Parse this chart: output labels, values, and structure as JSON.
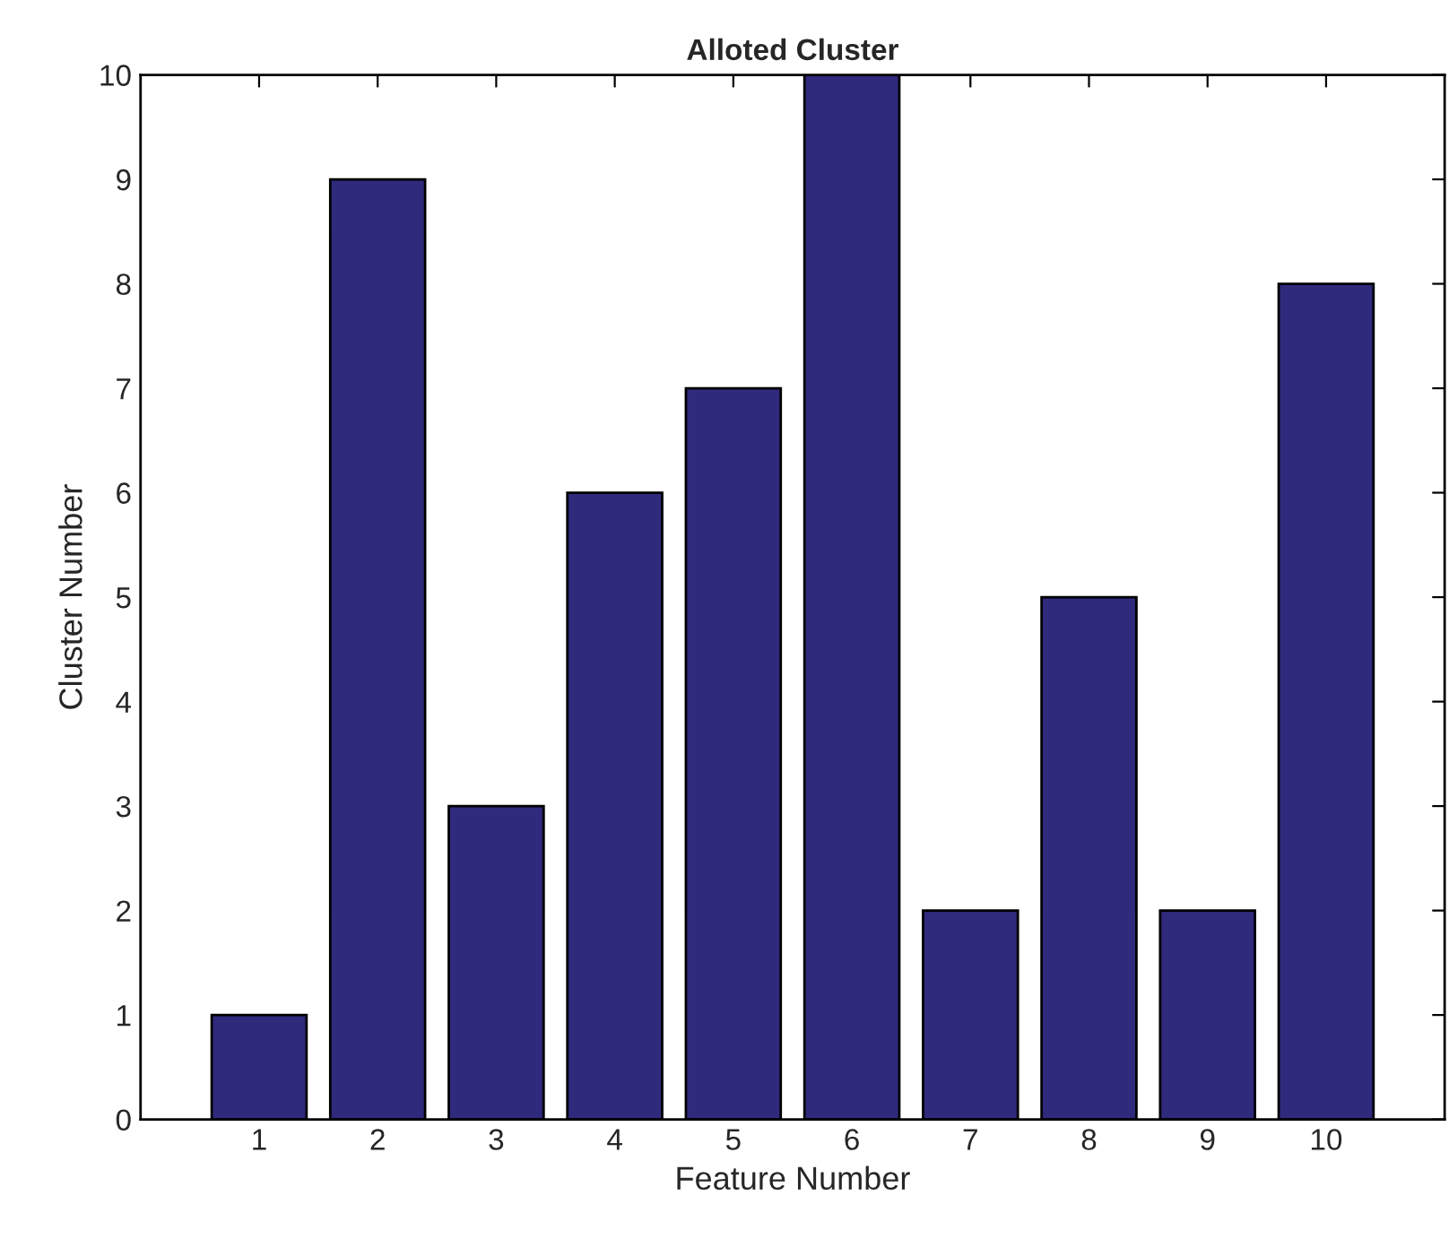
{
  "chart_data": {
    "type": "bar",
    "title": "Alloted Cluster",
    "xlabel": "Feature Number",
    "ylabel": "Cluster Number",
    "x": [
      1,
      2,
      3,
      4,
      5,
      6,
      7,
      8,
      9,
      10
    ],
    "values": [
      1,
      9,
      3,
      6,
      7,
      10,
      2,
      5,
      2,
      8
    ],
    "color": "#2f2a7c",
    "xlim": [
      0,
      11
    ],
    "xticks": [
      1,
      2,
      3,
      4,
      5,
      6,
      7,
      8,
      9,
      10
    ],
    "ylim": [
      0,
      10
    ],
    "yticks": [
      0,
      1,
      2,
      3,
      4,
      5,
      6,
      7,
      8,
      9,
      10
    ],
    "grid": false,
    "legend": false
  }
}
